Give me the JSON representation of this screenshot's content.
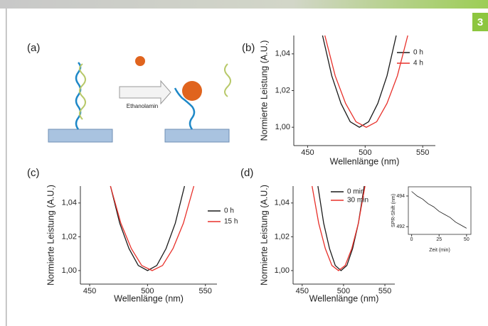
{
  "page_number": "3",
  "diagram": {
    "label": "(a)",
    "arrow_label": "Ethanolamin"
  },
  "chart_data": [
    {
      "type": "line",
      "panel_label": "(b)",
      "xlabel": "Wellenlänge (nm)",
      "ylabel": "Normierte Leistung (A.U.)",
      "xlim": [
        438,
        561
      ],
      "ylim": [
        0.99,
        1.05
      ],
      "xticks": [
        450,
        500,
        550
      ],
      "yticks": [
        {
          "value": 1.0,
          "label": "1,00"
        },
        {
          "value": 1.02,
          "label": "1,02"
        },
        {
          "value": 1.04,
          "label": "1,04"
        }
      ],
      "series": [
        {
          "name": "0 h",
          "color": "#1a1a1a",
          "x": [
            463,
            471,
            479,
            487,
            495,
            503,
            511,
            519,
            527
          ],
          "values": [
            1.05,
            1.028,
            1.013,
            1.003,
            1.0,
            1.003,
            1.013,
            1.028,
            1.05
          ]
        },
        {
          "name": "4 h",
          "color": "#e8302a",
          "x": [
            465,
            474,
            483,
            492,
            501,
            510,
            519,
            528,
            537
          ],
          "values": [
            1.05,
            1.028,
            1.013,
            1.003,
            1.0,
            1.003,
            1.013,
            1.028,
            1.05
          ]
        }
      ]
    },
    {
      "type": "line",
      "panel_label": "(c)",
      "xlabel": "Wellenlänge (nm)",
      "ylabel": "Normierte Leistung (A.U.)",
      "xlim": [
        442,
        560
      ],
      "ylim": [
        0.992,
        1.05
      ],
      "xticks": [
        450,
        500,
        550
      ],
      "yticks": [
        {
          "value": 1.0,
          "label": "1,00"
        },
        {
          "value": 1.02,
          "label": "1,02"
        },
        {
          "value": 1.04,
          "label": "1,04"
        }
      ],
      "series": [
        {
          "name": "0 h",
          "color": "#1a1a1a",
          "x": [
            468,
            476,
            484,
            492,
            500,
            508,
            516,
            524,
            532
          ],
          "values": [
            1.05,
            1.028,
            1.013,
            1.003,
            1.0,
            1.003,
            1.013,
            1.028,
            1.05
          ]
        },
        {
          "name": "15 h",
          "color": "#e8302a",
          "x": [
            468,
            477,
            486,
            495,
            504,
            513,
            522,
            531,
            540
          ],
          "values": [
            1.05,
            1.028,
            1.013,
            1.003,
            1.0,
            1.003,
            1.013,
            1.028,
            1.05
          ]
        }
      ]
    },
    {
      "type": "line",
      "panel_label": "(d)",
      "xlabel": "Wellenlänge (nm)",
      "ylabel": "Normierte Leistung (A.U.)",
      "xlim": [
        439,
        562
      ],
      "ylim": [
        0.992,
        1.05
      ],
      "xticks": [
        450,
        500,
        550
      ],
      "yticks": [
        {
          "value": 1.0,
          "label": "1,00"
        },
        {
          "value": 1.02,
          "label": "1,02"
        },
        {
          "value": 1.04,
          "label": "1,04"
        }
      ],
      "series": [
        {
          "name": "0 min",
          "color": "#1a1a1a",
          "x": [
            469,
            476,
            483,
            490,
            497,
            504,
            511,
            518,
            525
          ],
          "values": [
            1.05,
            1.028,
            1.013,
            1.003,
            1.0,
            1.003,
            1.013,
            1.028,
            1.05
          ]
        },
        {
          "name": "30 min",
          "color": "#e8302a",
          "x": [
            462,
            470,
            478,
            486,
            494,
            502,
            510,
            518,
            526
          ],
          "values": [
            1.05,
            1.028,
            1.013,
            1.003,
            1.0,
            1.003,
            1.013,
            1.028,
            1.05
          ]
        }
      ]
    },
    {
      "type": "line",
      "xlabel": "Zeit (min)",
      "ylabel": "SPR-Shift (nm)",
      "xlim": [
        -3,
        54
      ],
      "ylim": [
        491.5,
        494.6
      ],
      "xticks": [
        0,
        25,
        50
      ],
      "yticks": [
        492,
        494
      ],
      "series": [
        {
          "color": "#1a1a1a",
          "x": [
            0,
            5,
            10,
            15,
            20,
            25,
            30,
            35,
            40,
            45,
            50
          ],
          "values": [
            494.3,
            494.0,
            493.8,
            493.5,
            493.3,
            493.0,
            492.8,
            492.6,
            492.3,
            492.1,
            491.9
          ]
        }
      ]
    }
  ]
}
